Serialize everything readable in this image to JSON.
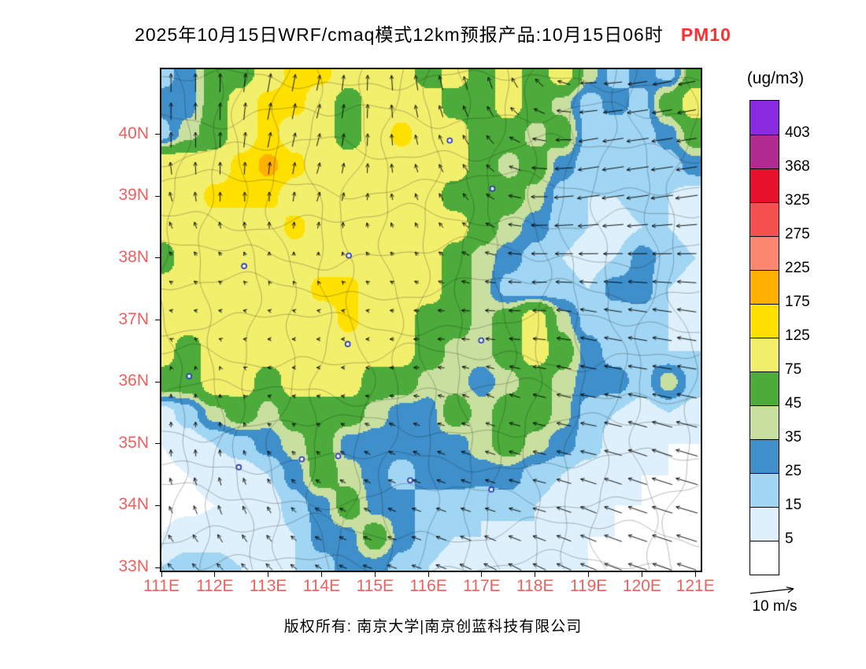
{
  "title": {
    "main": "2025年10月15日WRF/cmaq模式12km预报产品:10月15日06时",
    "pollutant": "PM10",
    "pollutant_color": "#f63232"
  },
  "footer": "版权所有: 南京大学|南京创蓝科技有限公司",
  "axes": {
    "lat_labels": [
      "40N",
      "39N",
      "38N",
      "37N",
      "36N",
      "35N",
      "34N",
      "33N"
    ],
    "lon_labels": [
      "111E",
      "112E",
      "113E",
      "114E",
      "115E",
      "116E",
      "117E",
      "118E",
      "119E",
      "120E",
      "121E"
    ],
    "label_color": "#ee6060"
  },
  "colorbar": {
    "unit_label": "(ug/m3)",
    "levels": [
      5,
      15,
      25,
      35,
      45,
      75,
      125,
      175,
      225,
      275,
      325,
      368,
      403
    ],
    "colors": [
      "#ffffff",
      "#ddf0fb",
      "#a0d5f3",
      "#3f8fcb",
      "#c9dfa0",
      "#4cab3a",
      "#f2ef6d",
      "#ffe000",
      "#ffb000",
      "#fb8770",
      "#f4504e",
      "#e8112d",
      "#b12a90",
      "#8a2be2"
    ]
  },
  "wind_legend": {
    "label": "10 m/s",
    "speed_mps": 10
  },
  "chart_data": {
    "type": "heatmap",
    "unit": "ug/m3",
    "lon_range": [
      111.0,
      121.1
    ],
    "lat_range": [
      32.95,
      41.05
    ],
    "grid_lon_start": 111.0,
    "grid_lon_step": 0.5,
    "grid_lat_start": 41.0,
    "grid_lat_step": -0.5,
    "pm10_grid": [
      [
        20,
        30,
        55,
        55,
        95,
        140,
        140,
        95,
        95,
        95,
        55,
        95,
        55,
        95,
        55,
        95,
        40,
        20,
        30,
        20,
        55
      ],
      [
        30,
        30,
        55,
        95,
        140,
        140,
        95,
        55,
        95,
        95,
        95,
        55,
        55,
        95,
        55,
        40,
        20,
        30,
        20,
        55,
        95
      ],
      [
        20,
        40,
        55,
        95,
        140,
        95,
        95,
        55,
        95,
        140,
        95,
        95,
        55,
        55,
        40,
        55,
        20,
        15,
        20,
        30,
        55
      ],
      [
        95,
        95,
        95,
        140,
        190,
        140,
        95,
        95,
        95,
        95,
        95,
        95,
        55,
        40,
        55,
        30,
        20,
        20,
        15,
        20,
        30
      ],
      [
        95,
        95,
        140,
        140,
        140,
        95,
        95,
        95,
        95,
        95,
        95,
        55,
        55,
        55,
        40,
        20,
        15,
        15,
        20,
        15,
        10
      ],
      [
        95,
        95,
        95,
        95,
        95,
        140,
        95,
        95,
        95,
        95,
        95,
        95,
        55,
        40,
        30,
        20,
        15,
        10,
        15,
        15,
        10
      ],
      [
        55,
        95,
        95,
        95,
        95,
        95,
        95,
        95,
        95,
        95,
        95,
        55,
        40,
        30,
        20,
        15,
        10,
        15,
        30,
        20,
        15
      ],
      [
        95,
        95,
        95,
        95,
        95,
        95,
        140,
        140,
        95,
        95,
        95,
        55,
        40,
        20,
        15,
        20,
        15,
        30,
        30,
        15,
        10
      ],
      [
        95,
        95,
        95,
        95,
        95,
        95,
        95,
        140,
        95,
        95,
        55,
        55,
        40,
        55,
        95,
        40,
        20,
        15,
        20,
        15,
        10
      ],
      [
        95,
        55,
        95,
        95,
        95,
        95,
        95,
        95,
        95,
        95,
        55,
        40,
        40,
        55,
        95,
        55,
        30,
        20,
        20,
        15,
        15
      ],
      [
        55,
        55,
        95,
        95,
        55,
        95,
        95,
        95,
        55,
        55,
        40,
        40,
        30,
        40,
        55,
        40,
        30,
        30,
        20,
        40,
        20
      ],
      [
        10,
        20,
        40,
        55,
        40,
        55,
        55,
        55,
        40,
        30,
        30,
        55,
        40,
        55,
        55,
        40,
        20,
        15,
        10,
        15,
        10
      ],
      [
        5,
        10,
        15,
        20,
        30,
        40,
        55,
        30,
        30,
        30,
        30,
        30,
        40,
        55,
        40,
        30,
        20,
        10,
        10,
        5,
        5
      ],
      [
        3,
        5,
        10,
        10,
        15,
        30,
        55,
        40,
        30,
        20,
        30,
        30,
        30,
        30,
        20,
        15,
        10,
        10,
        5,
        5,
        3
      ],
      [
        3,
        3,
        5,
        10,
        10,
        20,
        30,
        55,
        30,
        30,
        20,
        20,
        15,
        20,
        15,
        10,
        10,
        5,
        5,
        3,
        3
      ],
      [
        5,
        10,
        10,
        5,
        10,
        15,
        30,
        30,
        55,
        30,
        20,
        15,
        15,
        10,
        15,
        10,
        5,
        5,
        3,
        3,
        3
      ],
      [
        15,
        20,
        20,
        15,
        10,
        15,
        20,
        30,
        30,
        20,
        15,
        10,
        10,
        10,
        10,
        5,
        5,
        3,
        3,
        3,
        3
      ]
    ],
    "wind": {
      "lon_start": 111,
      "lon_step": 1,
      "lat_start": 41,
      "lat_step": -1,
      "u": [
        [
          0,
          0,
          1,
          1,
          0,
          -1,
          -1,
          -2,
          -5,
          -6,
          -5
        ],
        [
          0,
          0,
          1,
          1,
          0,
          -1,
          -2,
          -4,
          -6,
          -7,
          -6
        ],
        [
          -1,
          0,
          0,
          1,
          0,
          -1,
          -2,
          -5,
          -7,
          -7,
          -7
        ],
        [
          -1,
          -1,
          0,
          0,
          -1,
          -1,
          -3,
          -5,
          -6,
          -6,
          -6
        ],
        [
          -1,
          -1,
          -1,
          -1,
          -1,
          -2,
          -3,
          -4,
          -5,
          -6,
          -6
        ],
        [
          0,
          0,
          -1,
          -1,
          -1,
          -2,
          -2,
          -4,
          -5,
          -6,
          -6
        ],
        [
          0,
          0,
          -1,
          -1,
          -2,
          -2,
          -3,
          -4,
          -5,
          -6,
          -7
        ],
        [
          -1,
          -1,
          -1,
          -2,
          -2,
          -3,
          -3,
          -4,
          -5,
          -6,
          -7
        ],
        [
          -2,
          -2,
          -2,
          -2,
          -3,
          -3,
          -4,
          -4,
          -5,
          -6,
          -6
        ]
      ],
      "v": [
        [
          6,
          6,
          6,
          5,
          5,
          5,
          4,
          3,
          0,
          -1,
          -1
        ],
        [
          5,
          5,
          5,
          4,
          4,
          3,
          3,
          1,
          -1,
          -1,
          -1
        ],
        [
          3,
          3,
          3,
          3,
          2,
          2,
          2,
          0,
          -1,
          -1,
          -1
        ],
        [
          1,
          1,
          1,
          1,
          1,
          1,
          1,
          0,
          0,
          0,
          0
        ],
        [
          0,
          0,
          0,
          0,
          0,
          0,
          0,
          0,
          1,
          1,
          1
        ],
        [
          1,
          1,
          0,
          0,
          0,
          0,
          1,
          1,
          1,
          1,
          1
        ],
        [
          2,
          2,
          1,
          1,
          1,
          1,
          1,
          1,
          1,
          2,
          2
        ],
        [
          2,
          3,
          2,
          1,
          1,
          1,
          1,
          1,
          2,
          2,
          2
        ],
        [
          2,
          2,
          2,
          1,
          1,
          1,
          2,
          2,
          2,
          2,
          2
        ]
      ]
    },
    "city_markers": [
      [
        116.4,
        39.9
      ],
      [
        117.2,
        39.12
      ],
      [
        114.51,
        38.04
      ],
      [
        112.55,
        37.87
      ],
      [
        116.99,
        36.67
      ],
      [
        113.63,
        34.75
      ],
      [
        112.45,
        34.62
      ],
      [
        117.18,
        34.26
      ],
      [
        114.49,
        36.61
      ],
      [
        111.52,
        36.09
      ],
      [
        114.31,
        34.8
      ],
      [
        115.66,
        34.41
      ]
    ]
  }
}
